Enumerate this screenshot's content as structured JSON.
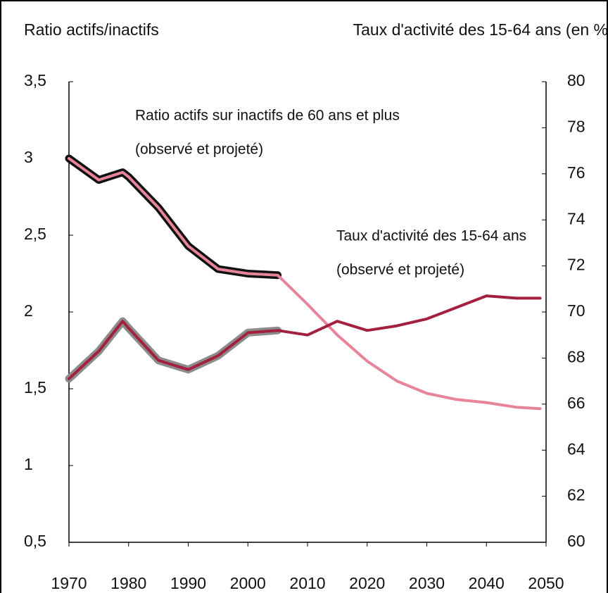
{
  "chart_data": {
    "type": "line",
    "ylabel": "Ratio actifs/inactifs",
    "y2label": "Taux d'activité des 15-64 ans (en %",
    "annotations": [
      "Ratio actifs sur inactifs de 60 ans et plus",
      "(observé et projeté)",
      "Taux d'activité des 15-64 ans",
      "(observé et projeté)"
    ],
    "x": [
      1970,
      1975,
      1979,
      1980,
      1985,
      1990,
      1995,
      2000,
      2005,
      2010,
      2015,
      2020,
      2025,
      2030,
      2035,
      2040,
      2045,
      2049
    ],
    "series": [
      {
        "color": "#111111",
        "width": 11,
        "values": [
          3.0,
          2.86,
          2.91,
          2.88,
          2.68,
          2.43,
          2.28,
          2.25,
          2.24,
          null,
          null,
          null,
          null,
          null,
          null,
          null,
          null,
          null
        ]
      },
      {
        "color": "#e8849a",
        "width": 4,
        "values": [
          3.0,
          2.86,
          2.91,
          2.88,
          2.68,
          2.43,
          2.28,
          2.25,
          2.24,
          2.05,
          1.85,
          1.68,
          1.55,
          1.47,
          1.43,
          1.41,
          1.38,
          1.37
        ]
      },
      {
        "color": "#8c8c8c",
        "width": 11,
        "axis": "y2",
        "values": [
          67.1,
          68.3,
          69.6,
          69.3,
          67.9,
          67.5,
          68.1,
          69.1,
          69.2,
          null,
          null,
          null,
          null,
          null,
          null,
          null,
          null,
          null
        ]
      },
      {
        "color": "#a3203f",
        "width": 4,
        "axis": "y2",
        "values": [
          67.1,
          68.3,
          69.6,
          69.3,
          67.9,
          67.5,
          68.1,
          69.1,
          69.2,
          69.0,
          69.6,
          69.2,
          69.4,
          69.7,
          70.2,
          70.7,
          70.6,
          70.6
        ]
      }
    ],
    "xlim": [
      1970,
      2050
    ],
    "xticks": [
      1970,
      1980,
      1990,
      2000,
      2010,
      2020,
      2030,
      2040,
      2050
    ],
    "ylim": [
      0.5,
      3.5
    ],
    "yticks": [
      {
        "value": 0.5,
        "label": "0,5"
      },
      1,
      {
        "value": 1.5,
        "label": "1,5"
      },
      2,
      {
        "value": 2.5,
        "label": "2,5"
      },
      3,
      {
        "value": 3.5,
        "label": "3,5"
      }
    ],
    "y2lim": [
      60,
      80
    ],
    "y2ticks": [
      60,
      62,
      64,
      66,
      68,
      70,
      72,
      74,
      76,
      78,
      80
    ],
    "grid": false
  }
}
